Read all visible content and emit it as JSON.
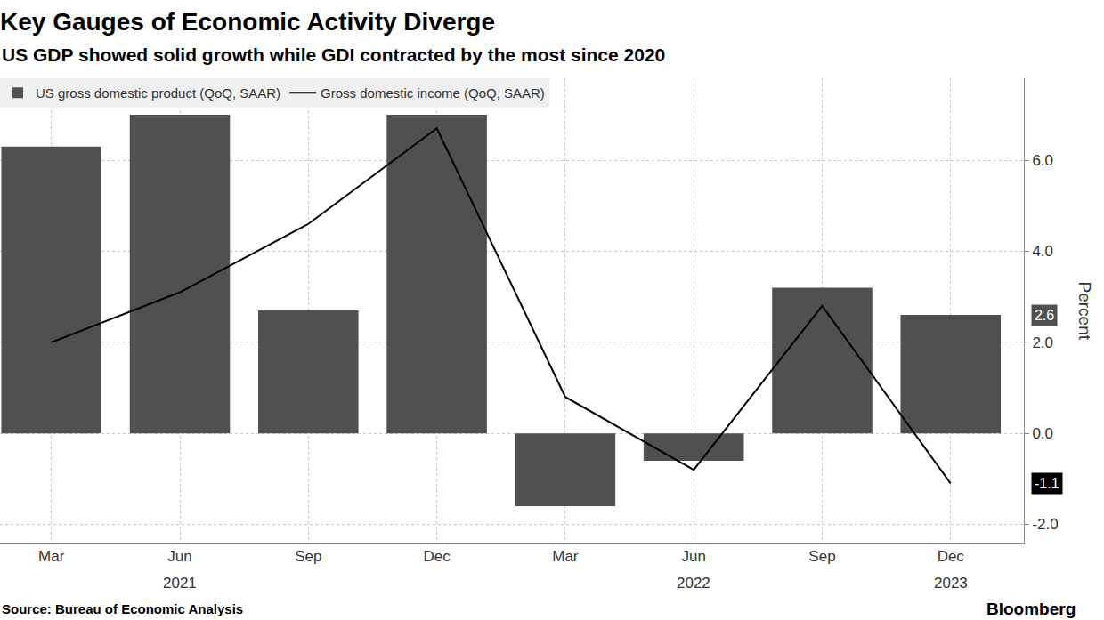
{
  "chart_data": {
    "type": "bar",
    "title": "Key Gauges of Economic Activity Diverge",
    "subtitle": "US GDP showed solid growth while GDI contracted by the most since 2020",
    "y_label": "Percent",
    "source": "Source: Bureau of Economic Analysis",
    "credit": "Bloomberg",
    "categories": [
      "Mar",
      "Jun",
      "Sep",
      "Dec",
      "Mar",
      "Jun",
      "Sep",
      "Dec"
    ],
    "year_labels": [
      {
        "text": "2021",
        "x": 1
      },
      {
        "text": "2022",
        "x": 5
      },
      {
        "text": "2023",
        "x": 7
      }
    ],
    "series": [
      {
        "name": "US gross domestic product (QoQ, SAAR)",
        "type": "bar",
        "color": "#505050",
        "values": [
          6.3,
          7.0,
          2.7,
          7.0,
          -1.6,
          -0.6,
          3.2,
          2.6
        ]
      },
      {
        "name": "Gross domestic income (QoQ, SAAR)",
        "type": "line",
        "color": "#000000",
        "values": [
          2.0,
          3.1,
          4.6,
          6.7,
          0.8,
          -0.8,
          2.8,
          -1.1
        ]
      }
    ],
    "last_value_labels": [
      {
        "series": "US gross domestic product (QoQ, SAAR)",
        "text": "2.6"
      },
      {
        "series": "Gross domestic income (QoQ, SAAR)",
        "text": "-1.1"
      }
    ],
    "ylim": [
      -2.4,
      7.8
    ],
    "yticks": [
      {
        "value": -2,
        "label": "-2.0"
      },
      {
        "value": 0,
        "label": "0.0"
      },
      {
        "value": 2,
        "label": "2.0"
      },
      {
        "value": 4,
        "label": "4.0"
      },
      {
        "value": 6,
        "label": "6.0"
      }
    ],
    "grid": true,
    "legend": "top-left"
  }
}
